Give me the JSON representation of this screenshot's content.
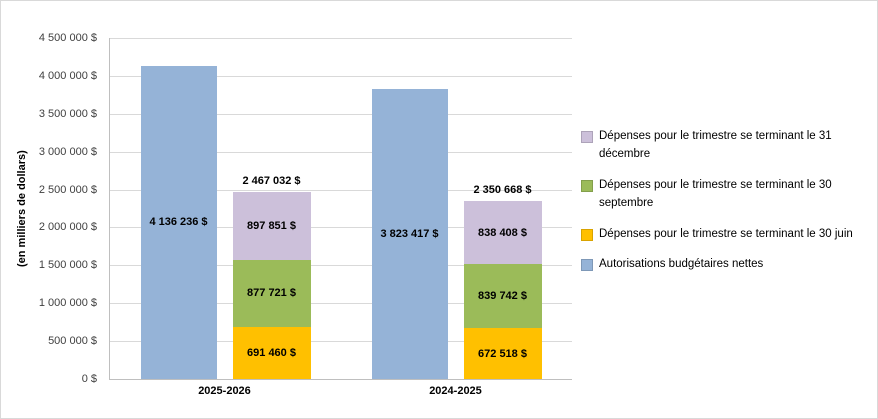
{
  "chart_data": {
    "type": "bar",
    "variant": "per fiscal year: one total-authorities bar plus one stacked quarterly-expenditures bar",
    "title": "",
    "ylabel": "(en milliers de dollars)",
    "ylim": [
      0,
      4500000
    ],
    "ytick_step": 500000,
    "ytick_labels": [
      "0  $",
      "500 000  $",
      "1 000 000  $",
      "1 500 000  $",
      "2 000 000  $",
      "2 500 000  $",
      "3 000 000  $",
      "3 500 000  $",
      "4 000 000  $",
      "4 500 000  $"
    ],
    "categories": [
      "2025-2026",
      "2024-2025"
    ],
    "series": [
      {
        "key": "autorisations",
        "name": "Autorisations budgétaires nettes",
        "color": "#95B3D7",
        "values": [
          4136236,
          3823417
        ],
        "labels": [
          "4 136 236 $",
          "3 823 417 $"
        ]
      },
      {
        "key": "juin",
        "name": "Dépenses pour le trimestre se terminant le 30 juin",
        "color": "#FFC000",
        "values": [
          691460,
          672518
        ],
        "labels": [
          "691 460 $",
          "672 518 $"
        ]
      },
      {
        "key": "septembre",
        "name": "Dépenses pour le trimestre se terminant le 30 septembre",
        "color": "#9BBB59",
        "values": [
          877721,
          839742
        ],
        "labels": [
          "877 721 $",
          "839 742 $"
        ]
      },
      {
        "key": "decembre",
        "name": "Dépenses pour le trimestre se terminant le 31 décembre",
        "color": "#CCC0DA",
        "values": [
          897851,
          838408
        ],
        "labels": [
          "897 851 $",
          "838 408 $"
        ]
      }
    ],
    "stack_order_top_to_bottom": [
      "decembre",
      "septembre",
      "juin"
    ],
    "stack_totals": {
      "values": [
        2467032,
        2350668
      ],
      "labels": [
        "2 467 032 $",
        "2 350 668 $"
      ]
    },
    "legend_order": [
      "decembre",
      "septembre",
      "juin",
      "autorisations"
    ],
    "legend_position": "right",
    "grid": true,
    "colors": {
      "grid": "#d9d9d9",
      "axis": "#bfbfbf",
      "frame_border": "#d9d9d9"
    }
  }
}
